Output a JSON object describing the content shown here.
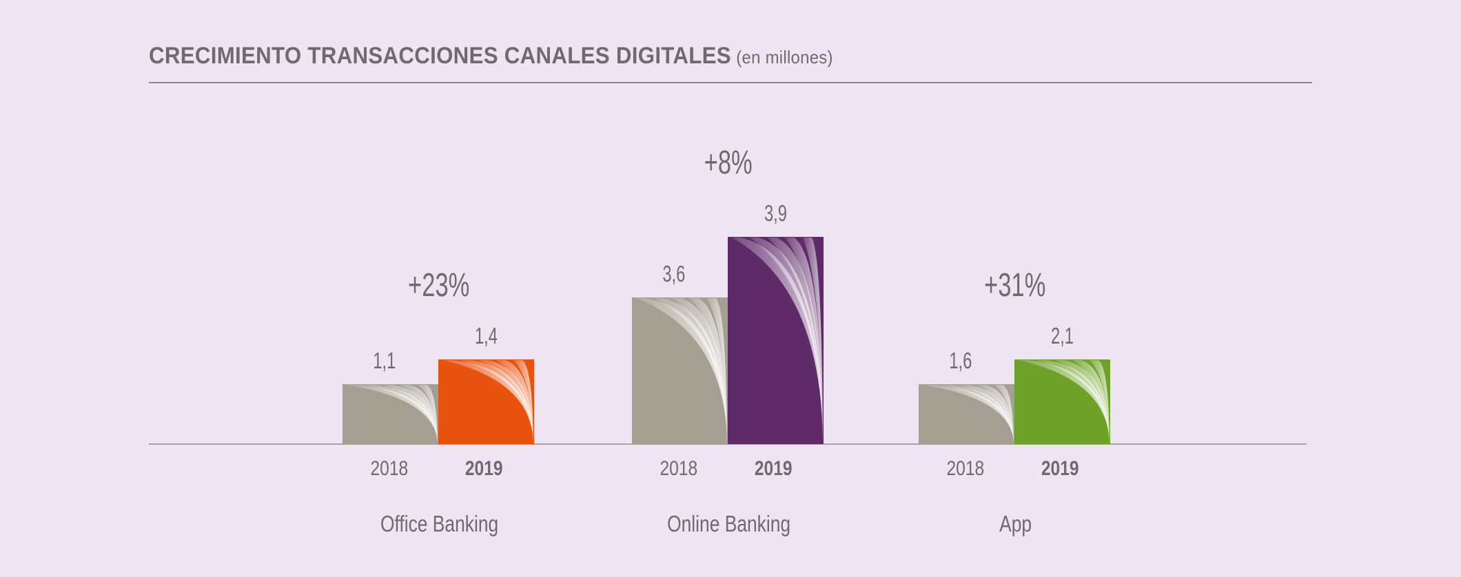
{
  "chart_data": {
    "type": "bar",
    "title": "CRECIMIENTO TRANSACCIONES CANALES DIGITALES",
    "subtitle": "(en millones)",
    "xlabel": "",
    "ylabel": "",
    "grid": false,
    "legend": "none",
    "groups": [
      {
        "name": "Office Banking",
        "growth": "+23%",
        "bars": [
          {
            "year": "2018",
            "value": 1.1,
            "label": "1,1"
          },
          {
            "year": "2019",
            "value": 1.4,
            "label": "1,4"
          }
        ]
      },
      {
        "name": "Online Banking",
        "growth": "+8%",
        "bars": [
          {
            "year": "2018",
            "value": 3.6,
            "label": "3,6"
          },
          {
            "year": "2019",
            "value": 3.9,
            "label": "3,9"
          }
        ]
      },
      {
        "name": "App",
        "growth": "+31%",
        "bars": [
          {
            "year": "2018",
            "value": 1.6,
            "label": "1,6"
          },
          {
            "year": "2019",
            "value": 2.1,
            "label": "2,1"
          }
        ]
      }
    ]
  },
  "colors": {
    "background": "#ede5f2",
    "bar_2018": "#a59f93",
    "office_banking_2019": "#e8520f",
    "online_banking_2019": "#5e2a68",
    "app_2019": "#6ea127",
    "text": "#6f6a6d",
    "rule": "#8e8096"
  }
}
